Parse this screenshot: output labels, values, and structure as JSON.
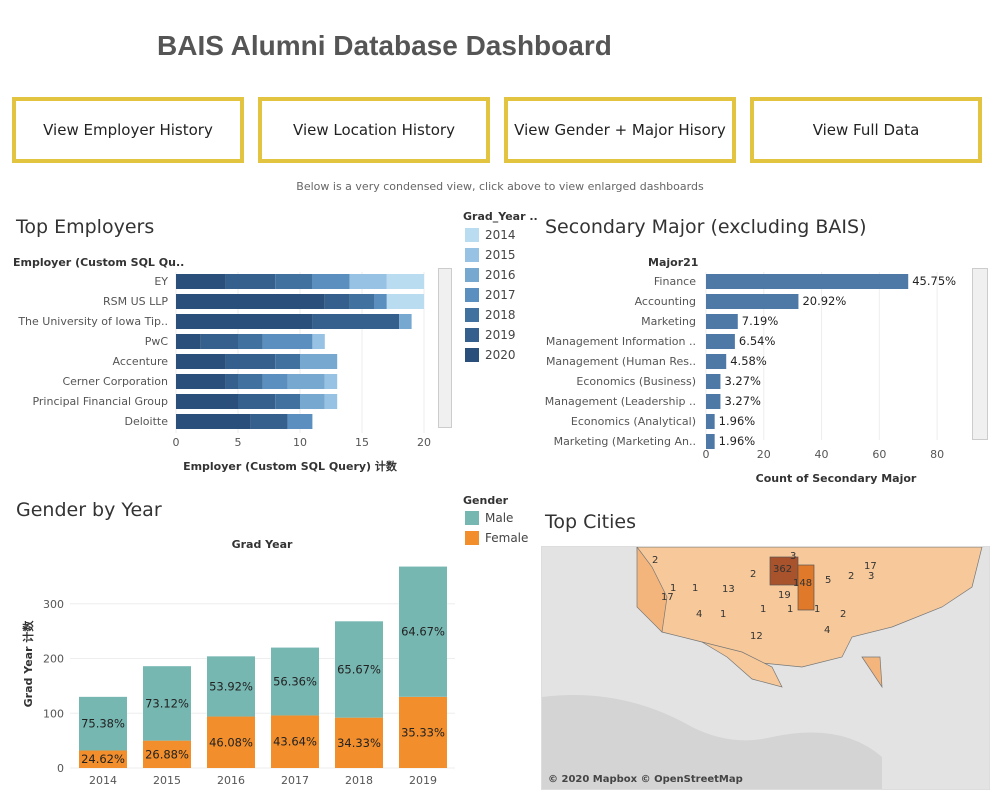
{
  "title": "BAIS Alumni Database Dashboard",
  "nav": [
    {
      "label": "View Employer History"
    },
    {
      "label": "View Location History"
    },
    {
      "label": "View Gender + Major Hisory"
    },
    {
      "label": "View Full Data"
    }
  ],
  "subnote": "Below is a very condensed view, click above to view enlarged dashboards",
  "employers": {
    "title": "Top Employers",
    "axis_header": "Employer (Custom SQL Qu..",
    "xlabel": "Employer (Custom SQL Query) 计数",
    "legend_title": "Grad_Year ..",
    "legend": [
      {
        "year": "2014",
        "color": "#b9dcf0"
      },
      {
        "year": "2015",
        "color": "#97c2e3"
      },
      {
        "year": "2016",
        "color": "#76a8d0"
      },
      {
        "year": "2017",
        "color": "#5a8fbf"
      },
      {
        "year": "2018",
        "color": "#41729f"
      },
      {
        "year": "2019",
        "color": "#355f8c"
      },
      {
        "year": "2020",
        "color": "#2b4f7b"
      }
    ]
  },
  "majors": {
    "title": "Secondary Major (excluding BAIS)",
    "axis_header": "Major21",
    "xlabel": "Count of Secondary Major",
    "bar_color": "#4e79a7"
  },
  "gender": {
    "title": "Gender by Year",
    "chart_title": "Grad Year",
    "ylabel": "Grad Year 计数",
    "legend_title": "Gender",
    "legend": [
      {
        "name": "Male",
        "color": "#76b7b2"
      },
      {
        "name": "Female",
        "color": "#f28e2b"
      }
    ]
  },
  "cities": {
    "title": "Top Cities",
    "credit": "© 2020 Mapbox © OpenStreetMap",
    "labels": [
      "2",
      "3",
      "2",
      "362",
      "148",
      "5",
      "2",
      "3",
      "17",
      "1",
      "1",
      "13",
      "19",
      "17",
      "4",
      "1",
      "1",
      "1",
      "1",
      "2",
      "12",
      "4"
    ]
  },
  "chart_data": [
    {
      "type": "bar",
      "orientation": "horizontal",
      "stacked": true,
      "title": "Top Employers",
      "xlabel": "Employer (Custom SQL Query) 计数",
      "xlim": [
        0,
        20
      ],
      "categories": [
        "EY",
        "RSM US LLP",
        "The University of Iowa Tip..",
        "PwC",
        "Accenture",
        "Cerner Corporation",
        "Principal Financial Group",
        "Deloitte"
      ],
      "series": [
        {
          "name": "2020",
          "values": [
            4,
            12,
            11,
            2,
            4,
            4,
            5,
            6
          ]
        },
        {
          "name": "2019",
          "values": [
            4,
            2,
            7,
            3,
            4,
            1,
            3,
            3
          ]
        },
        {
          "name": "2018",
          "values": [
            3,
            2,
            0,
            2,
            2,
            2,
            2,
            0
          ]
        },
        {
          "name": "2017",
          "values": [
            3,
            1,
            0,
            4,
            0,
            2,
            0,
            2
          ]
        },
        {
          "name": "2016",
          "values": [
            0,
            0,
            1,
            0,
            3,
            3,
            2,
            0
          ]
        },
        {
          "name": "2015",
          "values": [
            3,
            0,
            0,
            1,
            0,
            1,
            1,
            0
          ]
        },
        {
          "name": "2014",
          "values": [
            3,
            3,
            0,
            0,
            0,
            0,
            0,
            0
          ]
        }
      ]
    },
    {
      "type": "bar",
      "orientation": "horizontal",
      "title": "Secondary Major (excluding BAIS)",
      "xlabel": "Count of Secondary Major",
      "xlim": [
        0,
        90
      ],
      "categories": [
        "Finance",
        "Accounting",
        "Marketing",
        "Management Information ..",
        "Management (Human Res..",
        "Economics (Business)",
        "Management (Leadership ..",
        "Economics (Analytical)",
        "Marketing (Marketing An.."
      ],
      "values": [
        70,
        32,
        11,
        10,
        7,
        5,
        5,
        3,
        3
      ],
      "labels": [
        "45.75%",
        "20.92%",
        "7.19%",
        "6.54%",
        "4.58%",
        "3.27%",
        "3.27%",
        "1.96%",
        "1.96%"
      ]
    },
    {
      "type": "bar",
      "stacked": true,
      "title": "Grad Year",
      "ylabel": "Grad Year 计数",
      "ylim": [
        0,
        380
      ],
      "categories": [
        "2014",
        "2015",
        "2016",
        "2017",
        "2018",
        "2019"
      ],
      "totals": [
        130,
        186,
        204,
        220,
        268,
        368
      ],
      "series": [
        {
          "name": "Female",
          "percents": [
            "24.62%",
            "26.88%",
            "46.08%",
            "43.64%",
            "34.33%",
            "35.33%"
          ],
          "fractions": [
            0.2462,
            0.2688,
            0.4608,
            0.4364,
            0.3433,
            0.3533
          ]
        },
        {
          "name": "Male",
          "percents": [
            "75.38%",
            "73.12%",
            "53.92%",
            "56.36%",
            "65.67%",
            "64.67%"
          ],
          "fractions": [
            0.7538,
            0.7312,
            0.5392,
            0.5636,
            0.6567,
            0.6467
          ]
        }
      ]
    }
  ]
}
